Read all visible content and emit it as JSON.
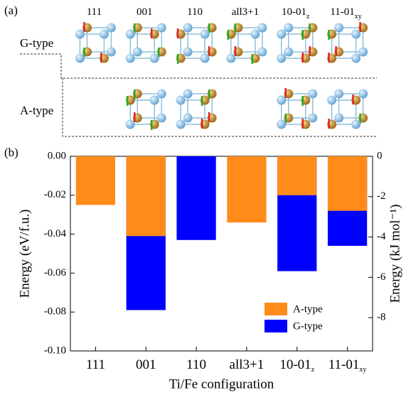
{
  "panel_a_label": "(a)",
  "row_labels": [
    "G-type",
    "A-type"
  ],
  "panel_b_label": "(b)",
  "chart_data": {
    "type": "bar",
    "categories": [
      "111",
      "001",
      "110",
      "all3+1",
      "10-01",
      "11-01"
    ],
    "category_subscripts": [
      null,
      null,
      null,
      null,
      "z",
      "xy"
    ],
    "xlabel": "Ti/Fe configuration",
    "ylabel": "Energy (eV/f.u.)",
    "y2label": "Energy (kJ mol⁻¹)",
    "series": [
      {
        "name": "A-type",
        "color": "#ff8c1a",
        "values": [
          -0.025,
          -0.041,
          null,
          -0.034,
          -0.02,
          -0.028
        ]
      },
      {
        "name": "G-type",
        "color": "#0000ff",
        "values": [
          null,
          -0.079,
          -0.043,
          null,
          -0.059,
          -0.046
        ]
      }
    ],
    "ylim": [
      -0.1,
      0
    ],
    "yticks": [
      {
        "value": 0,
        "label": "0.00"
      },
      -0.02,
      -0.04,
      -0.06,
      -0.08,
      {
        "value": -0.1,
        "label": "-0.10"
      }
    ],
    "y2lim": [
      -9.65,
      0
    ],
    "y2ticks": [
      0,
      -2,
      -4,
      -6,
      -8
    ],
    "legend": "lower right"
  }
}
